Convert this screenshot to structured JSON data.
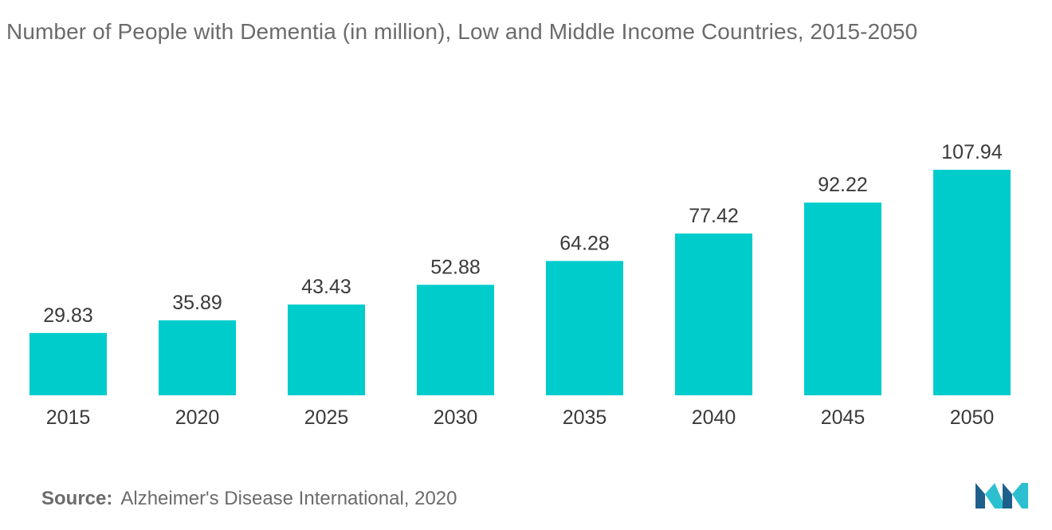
{
  "header": {
    "title": "Number of People with Dementia (in million), Low and Middle Income Countries, 2015-2050"
  },
  "chart_data": {
    "type": "bar",
    "title": "Number of People with Dementia (in million), Low and Middle Income Countries, 2015-2050",
    "categories": [
      "2015",
      "2020",
      "2025",
      "2030",
      "2035",
      "2040",
      "2045",
      "2050"
    ],
    "values": [
      29.83,
      35.89,
      43.43,
      52.88,
      64.28,
      77.42,
      92.22,
      107.94
    ],
    "data_labels": [
      "29.83",
      "35.89",
      "43.43",
      "52.88",
      "64.28",
      "77.42",
      "92.22",
      "107.94"
    ],
    "xlabel": "",
    "ylabel": "",
    "ylim": [
      0,
      107.94
    ],
    "grid": false,
    "legend": "none",
    "bar_color": "#00cccc"
  },
  "footer": {
    "source_label": "Source:",
    "source_text": "Alzheimer's Disease International, 2020"
  },
  "colors": {
    "bar": "#00cccc",
    "text": "#6b6b6b",
    "value_text": "#3a3a3a",
    "logo_dark": "#1f5f8b",
    "logo_light": "#2bbfd0"
  },
  "logo": {
    "icon": "company-logo-icon"
  }
}
